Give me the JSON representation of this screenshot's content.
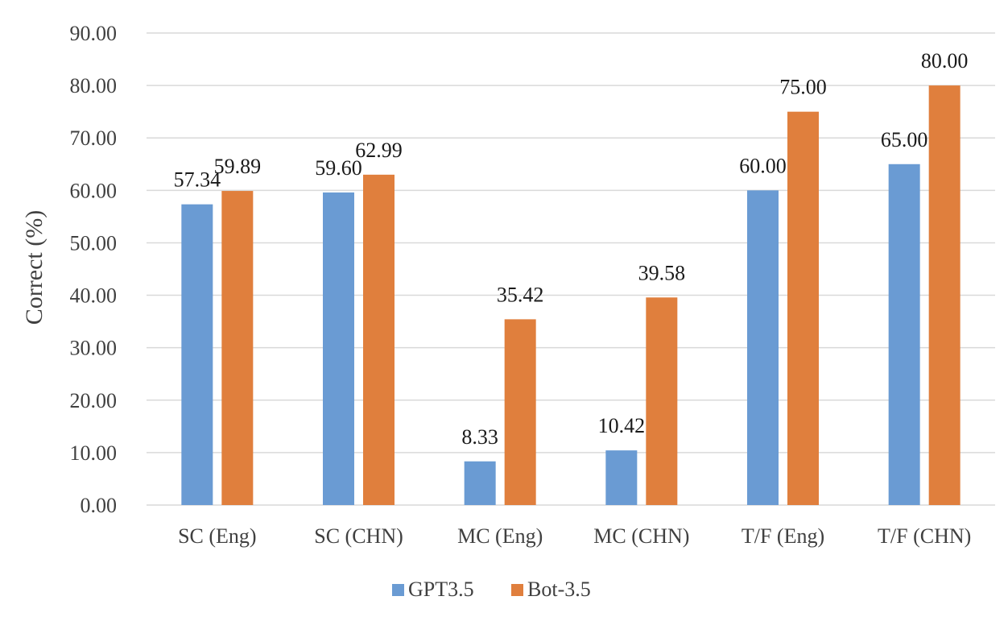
{
  "chart_data": {
    "type": "bar",
    "ylabel": "Correct (%)",
    "xlabel": "",
    "ylim": [
      0,
      90
    ],
    "ytick_step": 10,
    "ytick_decimals": 2,
    "grid": true,
    "legend_position": "bottom",
    "categories": [
      "SC (Eng)",
      "SC (CHN)",
      "MC (Eng)",
      "MC (CHN)",
      "T/F (Eng)",
      "T/F (CHN)"
    ],
    "series": [
      {
        "name": "GPT3.5",
        "color": "#6a9bd3",
        "values": [
          57.34,
          59.6,
          8.33,
          10.42,
          60.0,
          65.0
        ],
        "labels": [
          "57.34",
          "59.60",
          "8.33",
          "10.42",
          "60.00",
          "65.00"
        ]
      },
      {
        "name": "Bot-3.5",
        "color": "#e07f3d",
        "values": [
          59.89,
          62.99,
          35.42,
          39.58,
          75.0,
          80.0
        ],
        "labels": [
          "59.89",
          "62.99",
          "35.42",
          "39.58",
          "75.00",
          "80.00"
        ]
      }
    ]
  }
}
